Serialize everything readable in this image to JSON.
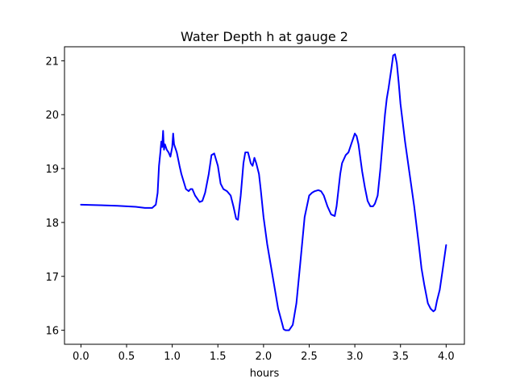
{
  "chart_data": {
    "type": "line",
    "title": "Water Depth h at gauge 2",
    "xlabel": "hours",
    "ylabel": "",
    "xlim": [
      -0.18,
      4.2
    ],
    "ylim": [
      15.74,
      21.26
    ],
    "xticks": [
      0.0,
      0.5,
      1.0,
      1.5,
      2.0,
      2.5,
      3.0,
      3.5,
      4.0
    ],
    "xtick_labels": [
      "0.0",
      "0.5",
      "1.0",
      "1.5",
      "2.0",
      "2.5",
      "3.0",
      "3.5",
      "4.0"
    ],
    "yticks": [
      16,
      17,
      18,
      19,
      20,
      21
    ],
    "ytick_labels": [
      "16",
      "17",
      "18",
      "19",
      "20",
      "21"
    ],
    "grid": false,
    "series": [
      {
        "color": "#0000ff",
        "x": [
          0.0,
          0.2,
          0.4,
          0.6,
          0.7,
          0.78,
          0.82,
          0.84,
          0.855,
          0.87,
          0.88,
          0.89,
          0.9,
          0.905,
          0.91,
          0.92,
          0.94,
          0.96,
          0.98,
          1.0,
          1.01,
          1.02,
          1.05,
          1.08,
          1.1,
          1.15,
          1.18,
          1.2,
          1.22,
          1.25,
          1.3,
          1.33,
          1.36,
          1.4,
          1.43,
          1.46,
          1.5,
          1.53,
          1.56,
          1.6,
          1.64,
          1.67,
          1.7,
          1.72,
          1.75,
          1.78,
          1.8,
          1.83,
          1.86,
          1.88,
          1.9,
          1.92,
          1.95,
          1.97,
          2.0,
          2.04,
          2.08,
          2.12,
          2.16,
          2.2,
          2.22,
          2.24,
          2.28,
          2.32,
          2.36,
          2.4,
          2.45,
          2.5,
          2.53,
          2.56,
          2.6,
          2.63,
          2.66,
          2.7,
          2.74,
          2.78,
          2.8,
          2.82,
          2.84,
          2.86,
          2.9,
          2.93,
          2.96,
          3.0,
          3.02,
          3.04,
          3.06,
          3.08,
          3.11,
          3.14,
          3.17,
          3.2,
          3.22,
          3.25,
          3.28,
          3.31,
          3.33,
          3.35,
          3.37,
          3.4,
          3.42,
          3.44,
          3.46,
          3.48,
          3.5,
          3.55,
          3.6,
          3.65,
          3.7,
          3.73,
          3.76,
          3.8,
          3.83,
          3.86,
          3.88,
          3.9,
          3.93,
          3.96,
          4.0
        ],
        "y": [
          18.33,
          18.32,
          18.31,
          18.29,
          18.27,
          18.27,
          18.33,
          18.55,
          19.05,
          19.3,
          19.5,
          19.4,
          19.7,
          19.5,
          19.35,
          19.45,
          19.35,
          19.3,
          19.22,
          19.4,
          19.65,
          19.45,
          19.3,
          19.05,
          18.9,
          18.62,
          18.58,
          18.62,
          18.62,
          18.5,
          18.38,
          18.4,
          18.55,
          18.9,
          19.25,
          19.28,
          19.05,
          18.72,
          18.62,
          18.58,
          18.5,
          18.3,
          18.07,
          18.05,
          18.5,
          19.1,
          19.3,
          19.3,
          19.1,
          19.05,
          19.2,
          19.1,
          18.9,
          18.6,
          18.1,
          17.6,
          17.2,
          16.8,
          16.4,
          16.15,
          16.02,
          16.0,
          16.0,
          16.1,
          16.5,
          17.2,
          18.1,
          18.5,
          18.55,
          18.58,
          18.6,
          18.58,
          18.5,
          18.3,
          18.15,
          18.12,
          18.3,
          18.6,
          18.9,
          19.1,
          19.25,
          19.3,
          19.45,
          19.65,
          19.6,
          19.45,
          19.2,
          18.95,
          18.65,
          18.4,
          18.3,
          18.3,
          18.35,
          18.5,
          19.0,
          19.6,
          20.0,
          20.3,
          20.5,
          20.85,
          21.1,
          21.12,
          20.95,
          20.6,
          20.2,
          19.5,
          18.9,
          18.3,
          17.6,
          17.15,
          16.85,
          16.5,
          16.4,
          16.35,
          16.38,
          16.55,
          16.75,
          17.1,
          17.58
        ]
      }
    ]
  }
}
